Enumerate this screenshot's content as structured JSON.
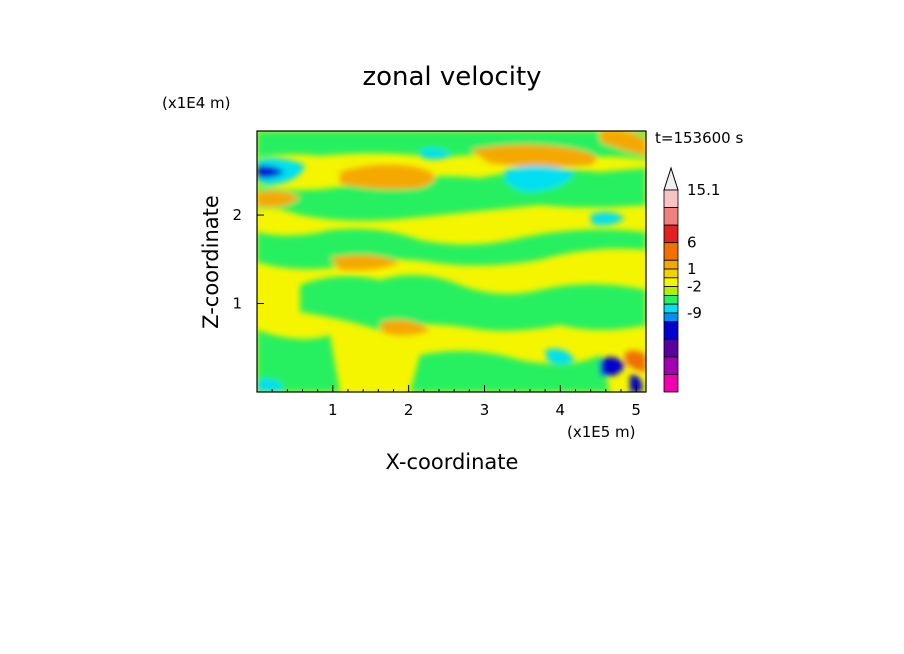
{
  "chart_data": {
    "type": "heatmap",
    "title": "zonal velocity",
    "x_multiplier_label": "(x1E5 m)",
    "y_multiplier_label": "(x1E4 m)",
    "xlabel": "X-coordinate",
    "ylabel": "Z-coordinate",
    "time_label": "t=153600 s",
    "xlim": [
      0,
      5.13
    ],
    "ylim": [
      0,
      2.95
    ],
    "x_ticks": [
      "1",
      "2",
      "3",
      "4",
      "5"
    ],
    "y_ticks": [
      "1",
      "2"
    ],
    "colorbar": {
      "labels": [
        "15.1",
        "6",
        "1",
        "-2",
        "-9"
      ],
      "colors": [
        "#f0f0f0",
        "#f7c4c4",
        "#f08080",
        "#e32020",
        "#f07000",
        "#f5a800",
        "#f0d200",
        "#f5f500",
        "#b0f000",
        "#28f060",
        "#00e0f0",
        "#0090f0",
        "#0000d0",
        "#5a00a0",
        "#a000b0",
        "#f000b0"
      ]
    },
    "field": {
      "contour_levels": [
        -12,
        -9,
        -6,
        -2,
        -1,
        0,
        1,
        2,
        4,
        6,
        9,
        12,
        15.1
      ],
      "level_colors": [
        "#f000b0",
        "#a000b0",
        "#0000d0",
        "#00e0f0",
        "#28f060",
        "#b0f000",
        "#f5f500",
        "#f0d200",
        "#f5a800",
        "#f07000",
        "#e32020",
        "#f08080",
        "#f7c4c4"
      ]
    }
  }
}
